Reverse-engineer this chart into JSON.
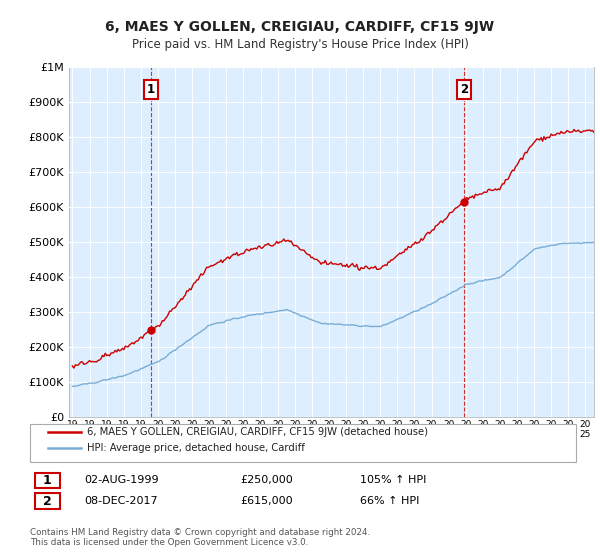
{
  "title": "6, MAES Y GOLLEN, CREIGIAU, CARDIFF, CF15 9JW",
  "subtitle": "Price paid vs. HM Land Registry's House Price Index (HPI)",
  "property_label": "6, MAES Y GOLLEN, CREIGIAU, CARDIFF, CF15 9JW (detached house)",
  "hpi_label": "HPI: Average price, detached house, Cardiff",
  "property_color": "#cc0000",
  "hpi_color": "#7aadd4",
  "marker1_x": 1999.58,
  "marker1_y": 250000,
  "marker2_x": 2017.92,
  "marker2_y": 615000,
  "marker1_label": "1",
  "marker2_label": "2",
  "marker1_date": "02-AUG-1999",
  "marker1_price": "£250,000",
  "marker1_hpi": "105% ↑ HPI",
  "marker2_date": "08-DEC-2017",
  "marker2_price": "£615,000",
  "marker2_hpi": "66% ↑ HPI",
  "footer": "Contains HM Land Registry data © Crown copyright and database right 2024.\nThis data is licensed under the Open Government Licence v3.0.",
  "ylim": [
    0,
    1000000
  ],
  "xlim_start": 1995,
  "xlim_end": 2025.5,
  "plot_bg_color": "#ddeeff",
  "grid_color": "#ffffff",
  "fig_bg_color": "#ffffff"
}
